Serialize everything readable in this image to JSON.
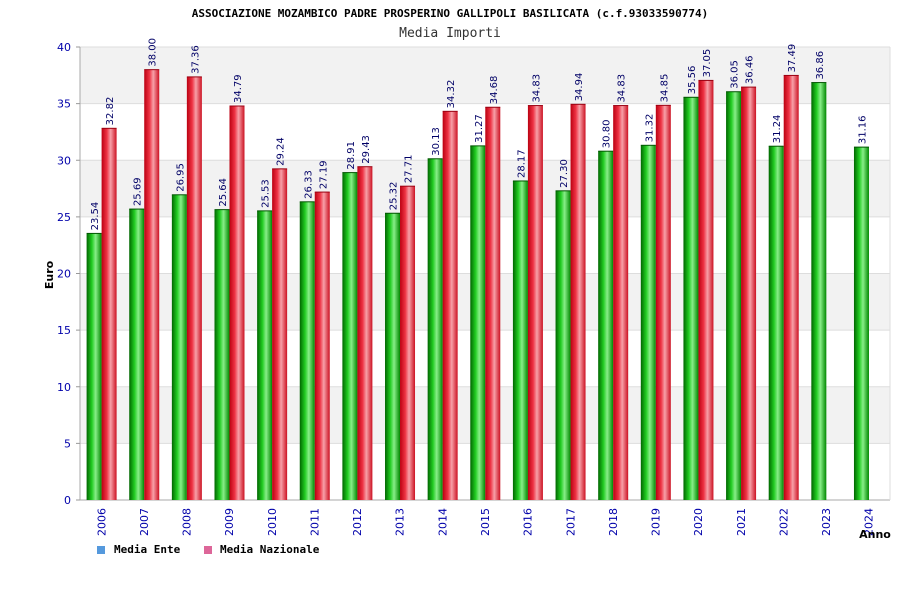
{
  "chart_data": {
    "type": "bar",
    "title": "ASSOCIAZIONE MOZAMBICO PADRE PROSPERINO GALLIPOLI BASILICATA (c.f.93033590774)",
    "subtitle": "Media Importi",
    "xlabel": "Anno",
    "ylabel": "Euro",
    "ylim": [
      0,
      40
    ],
    "yticks": [
      0,
      5,
      10,
      15,
      20,
      25,
      30,
      35,
      40
    ],
    "grid": true,
    "legend_position": "bottom-left",
    "categories": [
      "2006",
      "2007",
      "2008",
      "2009",
      "2010",
      "2011",
      "2012",
      "2013",
      "2014",
      "2015",
      "2016",
      "2017",
      "2018",
      "2019",
      "2020",
      "2021",
      "2022",
      "2023",
      "2024"
    ],
    "series": [
      {
        "name": "Media Ente",
        "legend_color": "#5599dd",
        "bar_color": "#00aa00",
        "values": [
          23.54,
          25.69,
          26.95,
          25.64,
          25.53,
          26.33,
          28.91,
          25.32,
          30.13,
          31.27,
          28.17,
          27.3,
          30.8,
          31.32,
          35.56,
          36.05,
          31.24,
          36.86,
          31.16
        ],
        "labels": [
          "23.54",
          "25.69",
          "26.95",
          "25.64",
          "25.53",
          "26.33",
          "28.91",
          "25.32",
          "30.13",
          "31.27",
          "28.17",
          "27.30",
          "30.80",
          "31.32",
          "35.56",
          "36.05",
          "31.24",
          "36.86",
          "31.16"
        ]
      },
      {
        "name": "Media Nazionale",
        "legend_color": "#dd6699",
        "bar_color": "#dd2233",
        "values": [
          32.82,
          38.0,
          37.36,
          34.79,
          29.24,
          27.19,
          29.43,
          27.71,
          34.32,
          34.68,
          34.83,
          34.94,
          34.83,
          34.85,
          37.05,
          36.46,
          37.49,
          null,
          null
        ],
        "labels": [
          "32.82",
          "38.00",
          "37.36",
          "34.79",
          "29.24",
          "27.19",
          "29.43",
          "27.71",
          "34.32",
          "34.68",
          "34.83",
          "34.94",
          "34.83",
          "34.85",
          "37.05",
          "36.46",
          "37.49",
          null,
          null
        ]
      }
    ]
  }
}
